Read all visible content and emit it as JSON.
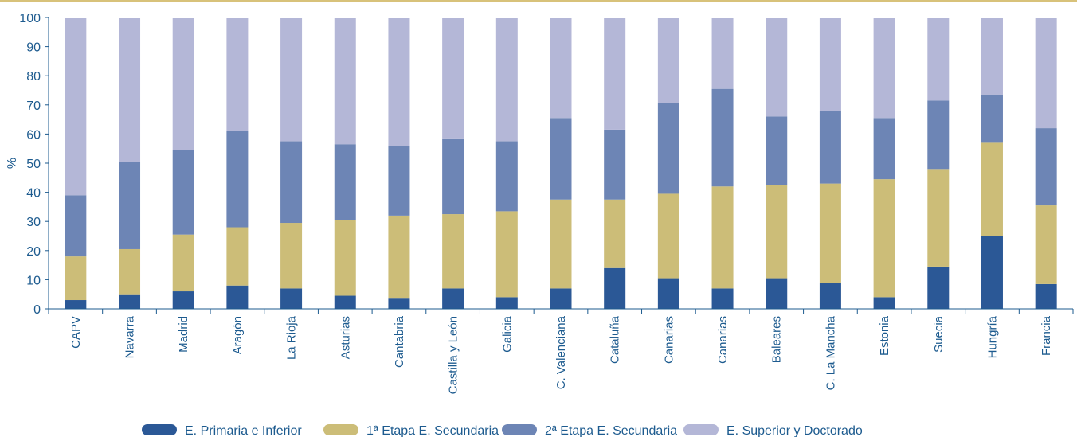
{
  "chart_data": {
    "type": "bar",
    "stacked": true,
    "ylabel": "%",
    "ylim": [
      0,
      100
    ],
    "yticks": [
      0,
      10,
      20,
      30,
      40,
      50,
      60,
      70,
      80,
      90,
      100
    ],
    "grid": false,
    "legend_position": "bottom",
    "categories": [
      "CAPV",
      "Navarra",
      "Madrid",
      "Aragón",
      "La Rioja",
      "Asturias",
      "Cantabria",
      "Castilla y León",
      "Galicia",
      "C. Valenciana",
      "Cataluña",
      "Canarias",
      "Canarias",
      "Baleares",
      "C. La Mancha",
      "Estonia",
      "Suecia",
      "Hungría",
      "Francia"
    ],
    "series": [
      {
        "name": "E. Primaria e Inferior",
        "color": "#2b5896",
        "values": [
          3,
          5,
          6,
          8,
          7,
          4.5,
          3.5,
          7,
          4,
          7,
          14,
          10.5,
          7,
          10.5,
          9,
          4,
          14.5,
          25,
          8.5
        ]
      },
      {
        "name": "1ª Etapa E. Secundaria",
        "color": "#ccbd78",
        "values": [
          15,
          15.5,
          19.5,
          20,
          22.5,
          26,
          28.5,
          25.5,
          29.5,
          30.5,
          23.5,
          29,
          35,
          32,
          34,
          40.5,
          33.5,
          32,
          27
        ]
      },
      {
        "name": "2ª Etapa E. Secundaria",
        "color": "#6d85b5",
        "values": [
          21,
          30,
          29,
          33,
          28,
          26,
          24,
          26,
          24,
          28,
          24,
          31,
          33.5,
          23.5,
          25,
          21,
          23.5,
          16.5,
          26.5
        ]
      },
      {
        "name": "E. Superior y Doctorado",
        "color": "#b4b7d7",
        "values": [
          61,
          49.5,
          45.5,
          39,
          42.5,
          43.5,
          44,
          41.5,
          42.5,
          34.5,
          38.5,
          29.5,
          24.5,
          34,
          32,
          34.5,
          28.5,
          26.5,
          38
        ]
      }
    ]
  },
  "colors": {
    "top_rule": "#d8c27a",
    "axis": "#1d5b8f",
    "text": "#1d5b8f"
  }
}
